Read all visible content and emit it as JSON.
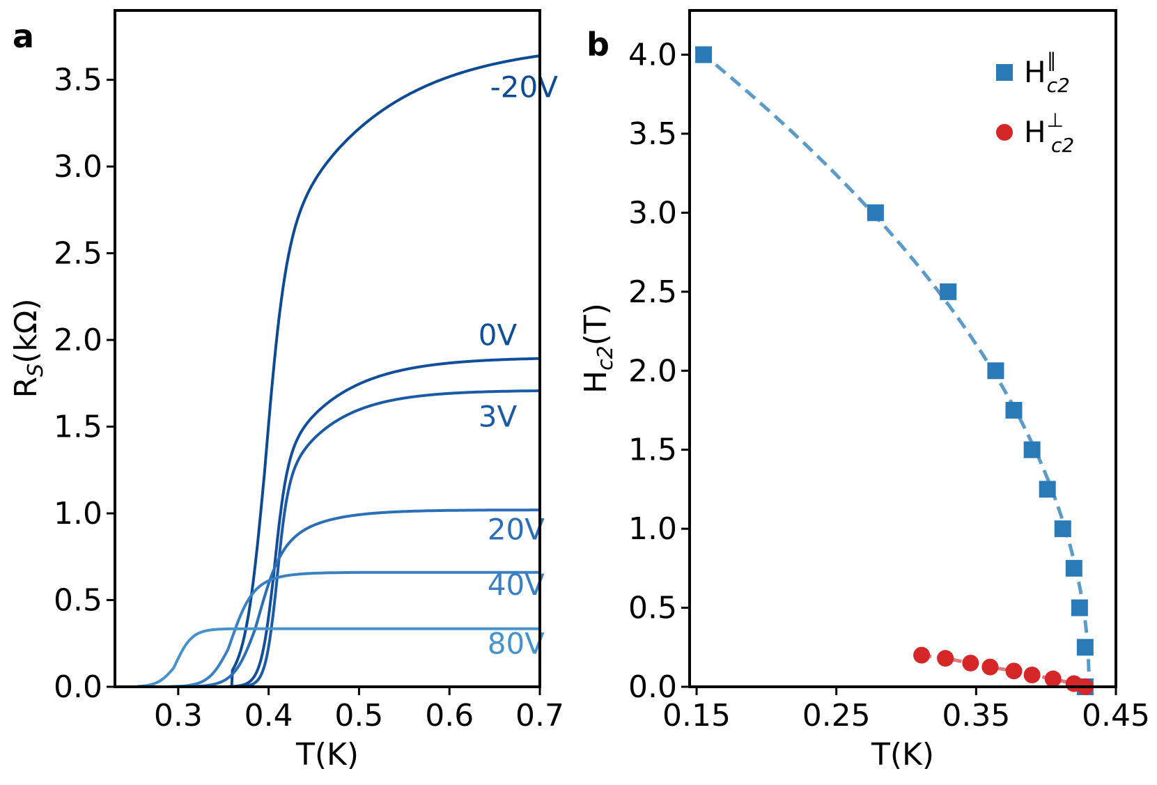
{
  "chart_data": [
    {
      "panel_label": "a",
      "type": "line",
      "xlabel": "T(K)",
      "ylabel_main": "R",
      "ylabel_sub": "S",
      "ylabel_tail": "(kΩ)",
      "xlim": [
        0.23,
        0.7
      ],
      "ylim": [
        0.0,
        3.9
      ],
      "x_ticks": [
        0.3,
        0.4,
        0.5,
        0.6,
        0.7
      ],
      "x_tick_labels": [
        "0.3",
        "0.4",
        "0.5",
        "0.6",
        "0.7"
      ],
      "y_ticks": [
        0.0,
        0.5,
        1.0,
        1.5,
        2.0,
        2.5,
        3.0,
        3.5
      ],
      "y_tick_labels": [
        "0.0",
        "0.5",
        "1.0",
        "1.5",
        "2.0",
        "2.5",
        "3.0",
        "3.5"
      ],
      "series": [
        {
          "name": "-20V",
          "color": "#0d4a94",
          "rn": 3.72,
          "tc": 0.395,
          "w": 0.011,
          "tail": 0.012,
          "tau": 0.11,
          "tstart": 0.36,
          "label_x": 0.645,
          "label_y": 3.4
        },
        {
          "name": "0V",
          "color": "#114f9c",
          "rn": 1.9,
          "tc": 0.405,
          "w": 0.007,
          "tail": 0.012,
          "tau": 0.065,
          "tstart": 0.355,
          "label_x": 0.632,
          "label_y": 1.97
        },
        {
          "name": "3V",
          "color": "#1a5aa6",
          "rn": 1.71,
          "tc": 0.408,
          "w": 0.006,
          "tail": 0.012,
          "tau": 0.055,
          "tstart": 0.375,
          "label_x": 0.632,
          "label_y": 1.5
        },
        {
          "name": "20V",
          "color": "#2a6fb8",
          "rn": 1.02,
          "tc": 0.385,
          "w": 0.012,
          "tail": 0.012,
          "tau": 0.045,
          "tstart": 0.31,
          "label_x": 0.642,
          "label_y": 0.85
        },
        {
          "name": "40V",
          "color": "#3a80c2",
          "rn": 0.66,
          "tc": 0.355,
          "w": 0.011,
          "tail": 0.01,
          "tau": 0.025,
          "tstart": 0.29,
          "label_x": 0.642,
          "label_y": 0.53
        },
        {
          "name": "80V",
          "color": "#4592cc",
          "rn": 0.335,
          "tc": 0.295,
          "w": 0.009,
          "tail": 0.005,
          "tau": 0.012,
          "tstart": 0.255,
          "label_x": 0.642,
          "label_y": 0.19
        }
      ]
    },
    {
      "panel_label": "b",
      "type": "scatter",
      "xlabel": "T(K)",
      "ylabel_main": "H",
      "ylabel_sub": "c2",
      "ylabel_tail": "(T)",
      "xlim": [
        0.145,
        0.45
      ],
      "ylim": [
        0.0,
        4.28
      ],
      "x_ticks": [
        0.15,
        0.25,
        0.35,
        0.45
      ],
      "x_tick_labels": [
        "0.15",
        "0.25",
        "0.35",
        "0.45"
      ],
      "y_ticks": [
        0.0,
        0.5,
        1.0,
        1.5,
        2.0,
        2.5,
        3.0,
        3.5,
        4.0
      ],
      "y_tick_labels": [
        "0.0",
        "0.5",
        "1.0",
        "1.5",
        "2.0",
        "2.5",
        "3.0",
        "3.5",
        "4.0"
      ],
      "series": [
        {
          "name": "H_c2 parallel",
          "legend_main": "H",
          "legend_sup": "∥",
          "legend_sub": "c2",
          "marker": "square",
          "color": "#2a7ab8",
          "fit_color": "#5b9bc9",
          "tc_fit": 0.431,
          "x": [
            0.155,
            0.278,
            0.33,
            0.364,
            0.377,
            0.39,
            0.401,
            0.412,
            0.42,
            0.424,
            0.428,
            0.428
          ],
          "y": [
            4.0,
            3.0,
            2.5,
            2.0,
            1.75,
            1.5,
            1.25,
            1.0,
            0.75,
            0.5,
            0.25,
            0.0
          ]
        },
        {
          "name": "H_c2 perpendicular",
          "legend_main": "H",
          "legend_sup": "⊥",
          "legend_sub": "c2",
          "marker": "circle",
          "color": "#d62728",
          "fit_color": "#e0787a",
          "x": [
            0.311,
            0.328,
            0.346,
            0.36,
            0.377,
            0.39,
            0.405,
            0.42,
            0.428
          ],
          "y": [
            0.2,
            0.18,
            0.15,
            0.125,
            0.1,
            0.075,
            0.05,
            0.02,
            0.0
          ]
        }
      ]
    }
  ]
}
